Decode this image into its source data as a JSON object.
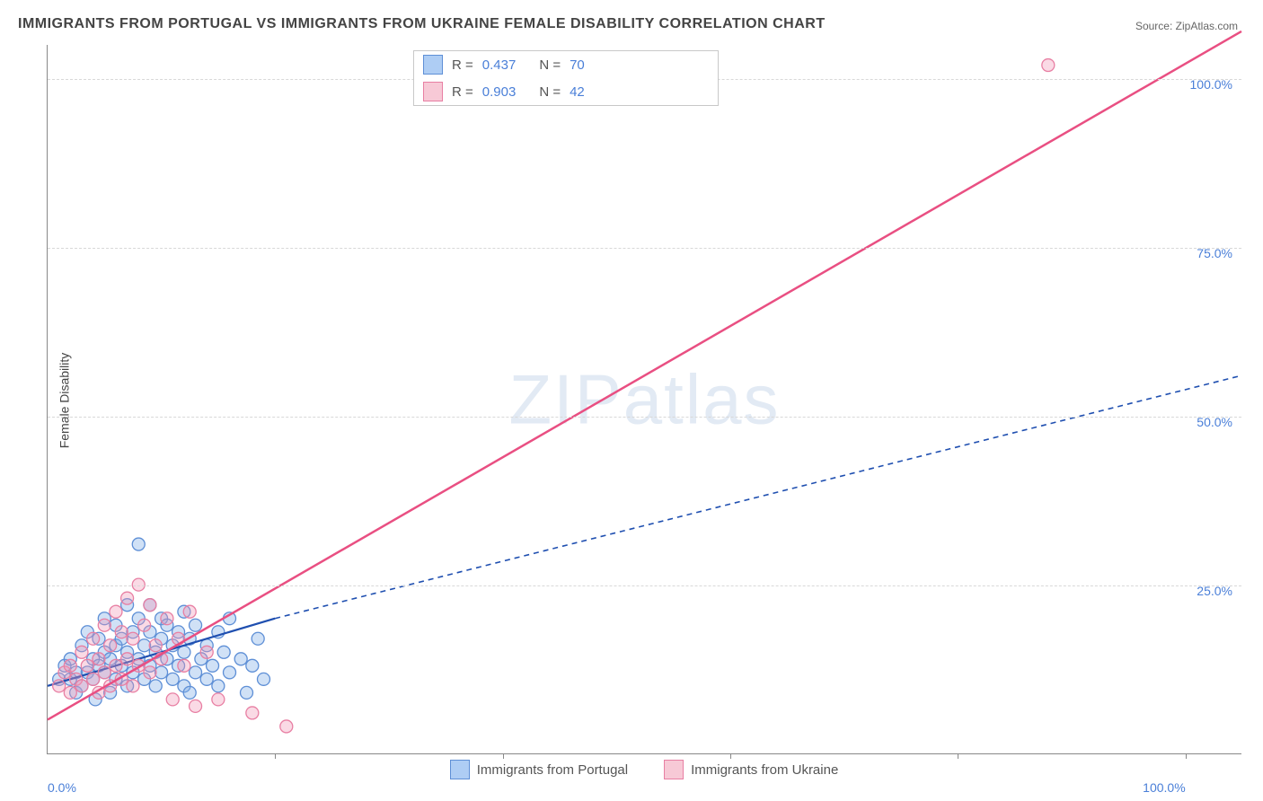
{
  "title": "IMMIGRANTS FROM PORTUGAL VS IMMIGRANTS FROM UKRAINE FEMALE DISABILITY CORRELATION CHART",
  "source": "Source: ZipAtlas.com",
  "ylabel": "Female Disability",
  "watermark": "ZIPatlas",
  "chart": {
    "type": "scatter-correlation",
    "xlim": [
      0,
      105
    ],
    "ylim": [
      0,
      105
    ],
    "ytick_vals": [
      25,
      50,
      75,
      100
    ],
    "ytick_labels": [
      "25.0%",
      "50.0%",
      "75.0%",
      "100.0%"
    ],
    "xtick_left": "0.0%",
    "xtick_right": "100.0%",
    "xtick_marks": [
      20,
      40,
      60,
      80,
      100
    ],
    "grid_color": "#d8d8d8",
    "background_color": "#ffffff",
    "axis_color": "#888888"
  },
  "legend_top": [
    {
      "swatch_fill": "#aecdf4",
      "swatch_border": "#5e8fd6",
      "r_label": "R =",
      "r": "0.437",
      "n_label": "N =",
      "n": "70"
    },
    {
      "swatch_fill": "#f7c9d6",
      "swatch_border": "#e87fa3",
      "r_label": "R =",
      "r": "0.903",
      "n_label": "N =",
      "n": "42"
    }
  ],
  "legend_bottom": [
    {
      "swatch_fill": "#aecdf4",
      "swatch_border": "#5e8fd6",
      "label": "Immigrants from Portugal"
    },
    {
      "swatch_fill": "#f7c9d6",
      "swatch_border": "#e87fa3",
      "label": "Immigrants from Ukraine"
    }
  ],
  "series": [
    {
      "name": "portugal",
      "marker_fill": "rgba(120,170,230,0.35)",
      "marker_stroke": "#5e8fd6",
      "marker_r": 7,
      "line_color": "#1f4fb0",
      "line_width": 2.2,
      "line_dash": "none",
      "line_x1": 0,
      "line_y1": 10,
      "line_x2": 20,
      "line_y2": 20,
      "ext_dash": "6,5",
      "ext_x1": 20,
      "ext_y1": 20,
      "ext_x2": 105,
      "ext_y2": 56,
      "points": [
        [
          1,
          11
        ],
        [
          1.5,
          13
        ],
        [
          2,
          11
        ],
        [
          2,
          14
        ],
        [
          2.5,
          9
        ],
        [
          2.5,
          12
        ],
        [
          3,
          10
        ],
        [
          3,
          16
        ],
        [
          3.5,
          12
        ],
        [
          3.5,
          18
        ],
        [
          4,
          11
        ],
        [
          4,
          14
        ],
        [
          4.2,
          8
        ],
        [
          4.5,
          13
        ],
        [
          4.5,
          17
        ],
        [
          5,
          12
        ],
        [
          5,
          15
        ],
        [
          5,
          20
        ],
        [
          5.5,
          9
        ],
        [
          5.5,
          14
        ],
        [
          6,
          11
        ],
        [
          6,
          16
        ],
        [
          6,
          19
        ],
        [
          6.5,
          13
        ],
        [
          6.5,
          17
        ],
        [
          7,
          10
        ],
        [
          7,
          15
        ],
        [
          7,
          22
        ],
        [
          7.5,
          12
        ],
        [
          7.5,
          18
        ],
        [
          8,
          14
        ],
        [
          8,
          20
        ],
        [
          8,
          31
        ],
        [
          8.5,
          11
        ],
        [
          8.5,
          16
        ],
        [
          9,
          13
        ],
        [
          9,
          18
        ],
        [
          9,
          22
        ],
        [
          9.5,
          10
        ],
        [
          9.5,
          15
        ],
        [
          10,
          12
        ],
        [
          10,
          17
        ],
        [
          10,
          20
        ],
        [
          10.5,
          14
        ],
        [
          10.5,
          19
        ],
        [
          11,
          11
        ],
        [
          11,
          16
        ],
        [
          11.5,
          13
        ],
        [
          11.5,
          18
        ],
        [
          12,
          10
        ],
        [
          12,
          15
        ],
        [
          12,
          21
        ],
        [
          12.5,
          9
        ],
        [
          12.5,
          17
        ],
        [
          13,
          12
        ],
        [
          13,
          19
        ],
        [
          13.5,
          14
        ],
        [
          14,
          11
        ],
        [
          14,
          16
        ],
        [
          14.5,
          13
        ],
        [
          15,
          10
        ],
        [
          15,
          18
        ],
        [
          15.5,
          15
        ],
        [
          16,
          12
        ],
        [
          16,
          20
        ],
        [
          17,
          14
        ],
        [
          17.5,
          9
        ],
        [
          18,
          13
        ],
        [
          18.5,
          17
        ],
        [
          19,
          11
        ]
      ]
    },
    {
      "name": "ukraine",
      "marker_fill": "rgba(240,150,180,0.35)",
      "marker_stroke": "#e87fa3",
      "marker_r": 7,
      "line_color": "#e94f82",
      "line_width": 2.5,
      "line_dash": "none",
      "line_x1": 0,
      "line_y1": 5,
      "line_x2": 105,
      "line_y2": 107,
      "ext_dash": null,
      "points": [
        [
          1,
          10
        ],
        [
          1.5,
          12
        ],
        [
          2,
          9
        ],
        [
          2,
          13
        ],
        [
          2.5,
          11
        ],
        [
          3,
          10
        ],
        [
          3,
          15
        ],
        [
          3.5,
          13
        ],
        [
          4,
          11
        ],
        [
          4,
          17
        ],
        [
          4.5,
          9
        ],
        [
          4.5,
          14
        ],
        [
          5,
          12
        ],
        [
          5,
          19
        ],
        [
          5.5,
          10
        ],
        [
          5.5,
          16
        ],
        [
          6,
          13
        ],
        [
          6,
          21
        ],
        [
          6.5,
          11
        ],
        [
          6.5,
          18
        ],
        [
          7,
          14
        ],
        [
          7,
          23
        ],
        [
          7.5,
          10
        ],
        [
          7.5,
          17
        ],
        [
          8,
          13
        ],
        [
          8,
          25
        ],
        [
          8.5,
          19
        ],
        [
          9,
          12
        ],
        [
          9,
          22
        ],
        [
          9.5,
          16
        ],
        [
          10,
          14
        ],
        [
          10.5,
          20
        ],
        [
          11,
          8
        ],
        [
          11.5,
          17
        ],
        [
          12,
          13
        ],
        [
          12.5,
          21
        ],
        [
          13,
          7
        ],
        [
          14,
          15
        ],
        [
          15,
          8
        ],
        [
          18,
          6
        ],
        [
          21,
          4
        ],
        [
          88,
          102
        ]
      ]
    }
  ]
}
